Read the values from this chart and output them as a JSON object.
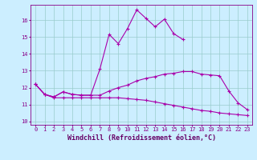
{
  "xlabel": "Windchill (Refroidissement éolien,°C)",
  "bg_color": "#cceeff",
  "grid_color": "#99cccc",
  "line_color": "#aa00aa",
  "xlim": [
    -0.5,
    23.5
  ],
  "ylim": [
    9.8,
    16.9
  ],
  "xticks": [
    0,
    1,
    2,
    3,
    4,
    5,
    6,
    7,
    8,
    9,
    10,
    11,
    12,
    13,
    14,
    15,
    16,
    17,
    18,
    19,
    20,
    21,
    22,
    23
  ],
  "yticks": [
    10,
    11,
    12,
    13,
    14,
    15,
    16
  ],
  "line1_x": [
    0,
    1,
    2,
    3,
    4,
    5,
    6,
    7,
    8,
    9,
    10,
    11,
    12,
    13,
    14,
    15,
    16,
    17,
    18,
    19,
    20,
    21,
    22,
    23
  ],
  "line1_y": [
    12.2,
    11.6,
    11.45,
    11.75,
    11.6,
    11.55,
    11.55,
    11.55,
    11.8,
    12.0,
    12.15,
    12.4,
    12.55,
    12.65,
    12.8,
    12.85,
    12.95,
    12.95,
    12.8,
    12.75,
    12.7,
    11.8,
    11.1,
    10.7
  ],
  "line2_x": [
    0,
    1,
    2,
    3,
    4,
    5,
    6,
    7,
    8,
    9,
    10,
    11,
    12,
    13,
    14,
    15,
    16,
    17,
    18,
    19,
    20,
    21,
    22,
    23
  ],
  "line2_y": [
    12.2,
    11.6,
    11.45,
    11.75,
    11.6,
    11.55,
    11.55,
    13.1,
    15.15,
    14.6,
    15.5,
    16.6,
    16.1,
    15.6,
    16.05,
    15.2,
    14.85,
    null,
    null,
    null,
    null,
    null,
    null,
    null
  ],
  "line3_x": [
    0,
    1,
    2,
    3,
    4,
    5,
    6,
    7,
    8,
    9,
    10,
    11,
    12,
    13,
    14,
    15,
    16,
    17,
    18,
    19,
    20,
    21,
    22,
    23
  ],
  "line3_y": [
    12.2,
    11.6,
    11.4,
    11.4,
    11.4,
    11.4,
    11.4,
    11.4,
    11.4,
    11.4,
    11.35,
    11.3,
    11.25,
    11.15,
    11.05,
    10.95,
    10.85,
    10.75,
    10.65,
    10.6,
    10.5,
    10.45,
    10.4,
    10.35
  ],
  "marker": "+",
  "markersize": 3,
  "linewidth": 0.8,
  "xlabel_fontsize": 6,
  "tick_fontsize": 5,
  "xlabel_color": "#660066",
  "tick_color": "#880088"
}
